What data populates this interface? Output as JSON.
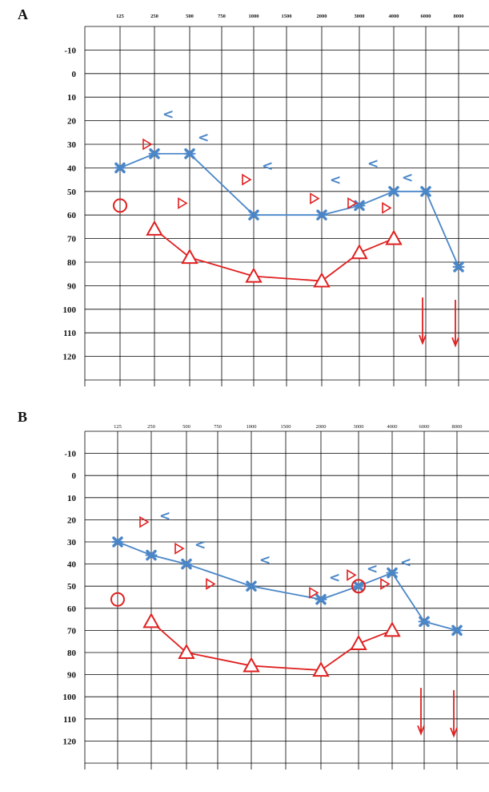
{
  "colors": {
    "right_ear": "#e02020",
    "left_ear": "#4a86c8",
    "grid": "#000000"
  },
  "chart_data": [
    {
      "type": "line",
      "panel_label": "A",
      "x_tick_labels": [
        "125",
        "250",
        "500",
        "750",
        "1000",
        "1500",
        "2000",
        "3000",
        "4000",
        "6000",
        "8000"
      ],
      "y_tick_labels": [
        "-10",
        "0",
        "10",
        "20",
        "30",
        "40",
        "50",
        "60",
        "70",
        "80",
        "90",
        "100",
        "110",
        "120"
      ],
      "ylim": [
        -20,
        130
      ],
      "y_inverted": true,
      "grid": true,
      "series": [
        {
          "color": "#4a86c8",
          "marker": "cross",
          "connected": true,
          "points": [
            {
              "x": "125",
              "y": 40
            },
            {
              "x": "250",
              "y": 34
            },
            {
              "x": "500",
              "y": 34
            },
            {
              "x": "1000",
              "y": 60
            },
            {
              "x": "2000",
              "y": 60
            },
            {
              "x": "3000",
              "y": 56
            },
            {
              "x": "4000",
              "y": 50
            },
            {
              "x": "6000",
              "y": 50
            },
            {
              "x": "8000",
              "y": 82
            }
          ]
        },
        {
          "color": "#e02020",
          "marker": "circle",
          "connected": false,
          "points": [
            {
              "x": "125",
              "y": 56
            }
          ]
        },
        {
          "color": "#e02020",
          "marker": "triangle",
          "connected": true,
          "points": [
            {
              "x": "250",
              "y": 66
            },
            {
              "x": "500",
              "y": 78
            },
            {
              "x": "1000",
              "y": 86
            },
            {
              "x": "2000",
              "y": 88
            },
            {
              "x": "3000",
              "y": 76
            },
            {
              "x": "4000",
              "y": 70
            }
          ]
        },
        {
          "color": "#e02020",
          "marker": "right-angle-bracket",
          "connected": false,
          "points": [
            {
              "x": "250",
              "y": 30
            },
            {
              "x": "500",
              "y": 55
            },
            {
              "x": "1000",
              "y": 45
            },
            {
              "x": "2000",
              "y": 53
            },
            {
              "x": "3000",
              "y": 55
            },
            {
              "x": "4000",
              "y": 57
            }
          ]
        },
        {
          "color": "#4a86c8",
          "marker": "left-angle-bracket",
          "connected": false,
          "points": [
            {
              "x": "250",
              "y": 17
            },
            {
              "x": "500",
              "y": 27
            },
            {
              "x": "1000",
              "y": 39
            },
            {
              "x": "2000",
              "y": 45
            },
            {
              "x": "3000",
              "y": 38
            },
            {
              "x": "4000",
              "y": 44
            }
          ]
        },
        {
          "color": "#e02020",
          "marker": "down-arrow",
          "connected": false,
          "points": [
            {
              "x": "6000",
              "y": 95
            },
            {
              "x": "8000",
              "y": 96
            }
          ]
        }
      ]
    },
    {
      "type": "line",
      "panel_label": "B",
      "x_tick_labels": [
        "125",
        "250",
        "500",
        "750",
        "1000",
        "1500",
        "2000",
        "3000",
        "4000",
        "6000",
        "8000"
      ],
      "y_tick_labels": [
        "-10",
        "0",
        "10",
        "20",
        "30",
        "40",
        "50",
        "60",
        "70",
        "80",
        "90",
        "100",
        "110",
        "120"
      ],
      "ylim": [
        -20,
        130
      ],
      "y_inverted": true,
      "grid": true,
      "series": [
        {
          "color": "#4a86c8",
          "marker": "cross",
          "connected": true,
          "points": [
            {
              "x": "125",
              "y": 30
            },
            {
              "x": "250",
              "y": 36
            },
            {
              "x": "500",
              "y": 40
            },
            {
              "x": "1000",
              "y": 50
            },
            {
              "x": "2000",
              "y": 56
            },
            {
              "x": "3000",
              "y": 50
            },
            {
              "x": "4000",
              "y": 44
            },
            {
              "x": "6000",
              "y": 66
            },
            {
              "x": "8000",
              "y": 70
            }
          ]
        },
        {
          "color": "#e02020",
          "marker": "circle",
          "connected": false,
          "points": [
            {
              "x": "125",
              "y": 56
            },
            {
              "x": "3000",
              "y": 50
            }
          ]
        },
        {
          "color": "#e02020",
          "marker": "triangle",
          "connected": true,
          "points": [
            {
              "x": "250",
              "y": 66
            },
            {
              "x": "500",
              "y": 80
            },
            {
              "x": "1000",
              "y": 86
            },
            {
              "x": "2000",
              "y": 88
            },
            {
              "x": "3000",
              "y": 76
            },
            {
              "x": "4000",
              "y": 70
            }
          ]
        },
        {
          "color": "#e02020",
          "marker": "right-angle-bracket",
          "connected": false,
          "points": [
            {
              "x": "250",
              "y": 21
            },
            {
              "x": "500",
              "y": 33
            },
            {
              "x": "750",
              "y": 49
            },
            {
              "x": "2000",
              "y": 53
            },
            {
              "x": "3000",
              "y": 45
            },
            {
              "x": "4000",
              "y": 49
            }
          ]
        },
        {
          "color": "#4a86c8",
          "marker": "left-angle-bracket",
          "connected": false,
          "points": [
            {
              "x": "250",
              "y": 18
            },
            {
              "x": "500",
              "y": 31
            },
            {
              "x": "1000",
              "y": 38
            },
            {
              "x": "2000",
              "y": 46
            },
            {
              "x": "3000",
              "y": 42
            },
            {
              "x": "4000",
              "y": 39
            }
          ]
        },
        {
          "color": "#e02020",
          "marker": "down-arrow",
          "connected": false,
          "points": [
            {
              "x": "6000",
              "y": 96
            },
            {
              "x": "8000",
              "y": 97
            }
          ]
        }
      ]
    }
  ]
}
